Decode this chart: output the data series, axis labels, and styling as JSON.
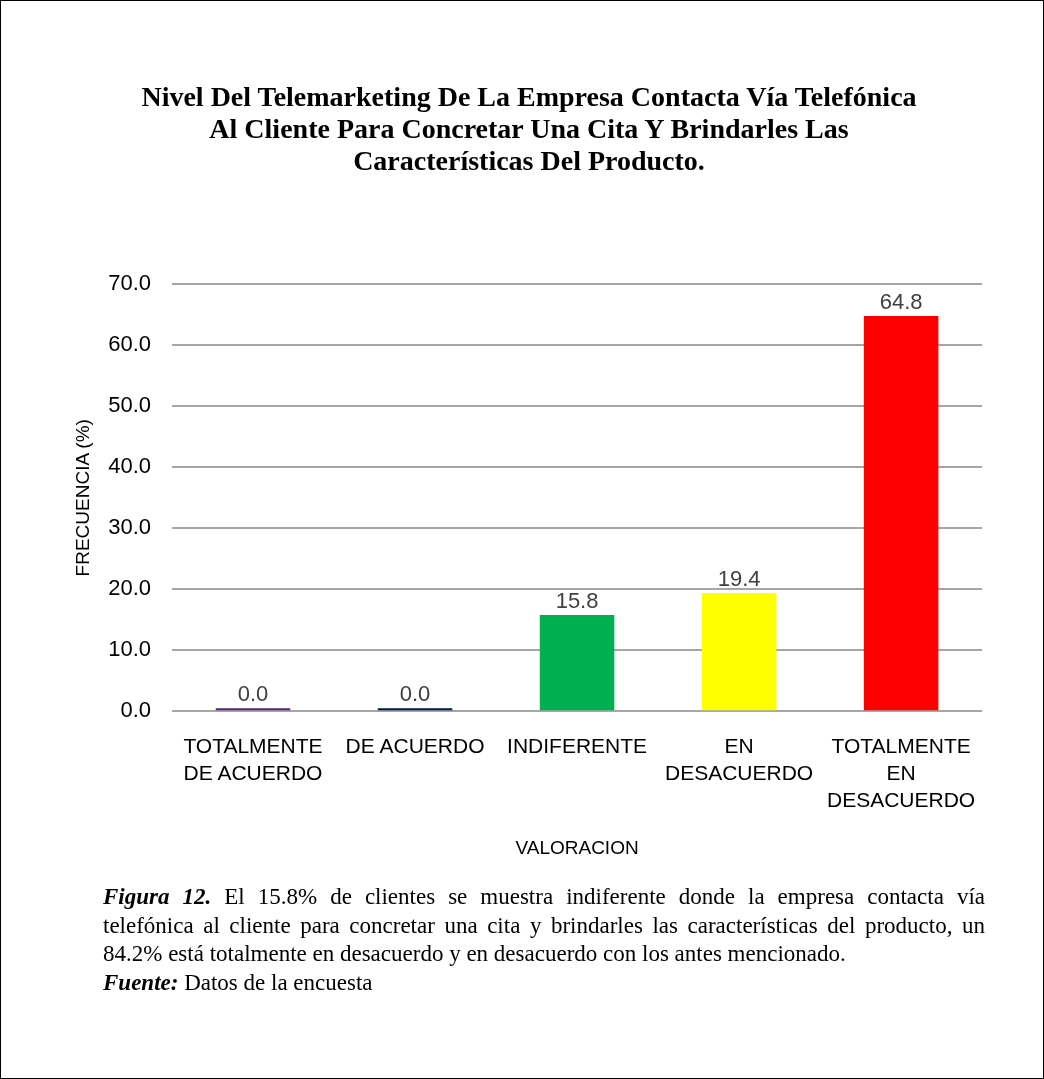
{
  "chart_data": {
    "type": "bar",
    "title": "Nivel Del Telemarketing De La Empresa Contacta Vía Telefónica Al Cliente Para Concretar Una Cita Y Brindarles Las Características Del Producto.",
    "xlabel": "VALORACION",
    "ylabel": "FRECUENCIA (%)",
    "categories": [
      "TOTALMENTE DE ACUERDO",
      "DE ACUERDO",
      "INDIFERENTE",
      "EN DESACUERDO",
      "TOTALMENTE EN DESACUERDO"
    ],
    "values": [
      0,
      0,
      15.8,
      19.4,
      64.8
    ],
    "colors": [
      "#5b2479",
      "#001a4a",
      "#00b050",
      "#ffff00",
      "#ff0000"
    ],
    "value_labels": [
      "0.0",
      "0.0",
      "15.8",
      "19.4",
      "64.8"
    ],
    "ylim": [
      0,
      70
    ],
    "yticks": [
      {
        "value": 0,
        "label": "0.0"
      },
      {
        "value": 10,
        "label": "10.0"
      },
      {
        "value": 20,
        "label": "20.0"
      },
      {
        "value": 30,
        "label": "30.0"
      },
      {
        "value": 40,
        "label": "40.0"
      },
      {
        "value": 50,
        "label": "50.0"
      },
      {
        "value": 60,
        "label": "60.0"
      },
      {
        "value": 70,
        "label": "70.0"
      }
    ],
    "grid": "y",
    "annotations": [
      "Figura 12. El 15.8% de clientes se muestra indiferente donde la empresa contacta vía telefónica al cliente para concretar una cita y brindarles las características del producto, un 84.2% está totalmente en desacuerdo y en desacuerdo con los antes mencionado.",
      "Fuente: Datos de la encuesta"
    ]
  }
}
